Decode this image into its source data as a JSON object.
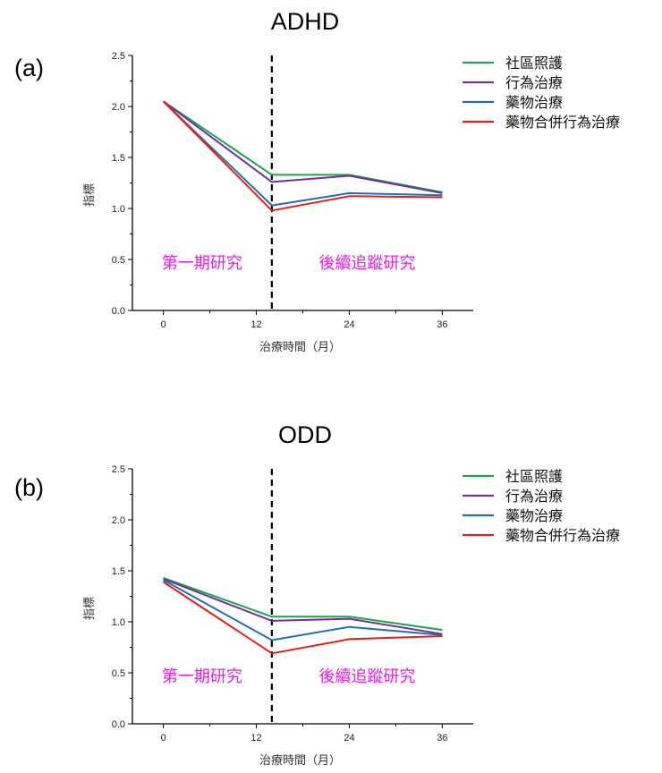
{
  "chart_data": [
    {
      "type": "line",
      "panel_label": "(a)",
      "title": "ADHD",
      "xlabel": "治療時間（月）",
      "ylabel": "指標",
      "x": [
        0,
        12,
        24,
        36
      ],
      "x_ticks": [
        "0",
        "12",
        "24",
        "36"
      ],
      "xlim": [
        -4,
        40
      ],
      "ylim": [
        0,
        2.5
      ],
      "y_ticks": [
        "0.0",
        "0.5",
        "1.0",
        "1.5",
        "2.0",
        "2.5"
      ],
      "divider_x": 14,
      "grid": false,
      "legend_position": "top-right",
      "phase_labels": [
        "第一期研究",
        "後續追蹤研究"
      ],
      "series": [
        {
          "name": "社區照護",
          "color": "#1aa64a",
          "x": [
            0,
            14,
            24,
            36
          ],
          "values": [
            2.05,
            1.33,
            1.33,
            1.16
          ]
        },
        {
          "name": "行為治療",
          "color": "#7030a0",
          "x": [
            0,
            14,
            24,
            36
          ],
          "values": [
            2.05,
            1.26,
            1.32,
            1.15
          ]
        },
        {
          "name": "藥物治療",
          "color": "#1f6fb0",
          "x": [
            0,
            14,
            24,
            36
          ],
          "values": [
            2.05,
            1.03,
            1.15,
            1.13
          ]
        },
        {
          "name": "藥物合併行為治療",
          "color": "#e0201a",
          "x": [
            0,
            14,
            24,
            36
          ],
          "values": [
            2.05,
            0.98,
            1.12,
            1.11
          ]
        }
      ]
    },
    {
      "type": "line",
      "panel_label": "(b)",
      "title": "ODD",
      "xlabel": "治療時間（月）",
      "ylabel": "指標",
      "x": [
        0,
        12,
        24,
        36
      ],
      "x_ticks": [
        "0",
        "12",
        "24",
        "36"
      ],
      "xlim": [
        -4,
        40
      ],
      "ylim": [
        0,
        2.5
      ],
      "y_ticks": [
        "0.0",
        "0.5",
        "1.0",
        "1.5",
        "2.0",
        "2.5"
      ],
      "divider_x": 14,
      "grid": false,
      "legend_position": "top-right",
      "phase_labels": [
        "第一期研究",
        "後續追蹤研究"
      ],
      "series": [
        {
          "name": "社區照護",
          "color": "#1aa64a",
          "x": [
            0,
            14,
            24,
            36
          ],
          "values": [
            1.43,
            1.05,
            1.05,
            0.92
          ]
        },
        {
          "name": "行為治療",
          "color": "#7030a0",
          "x": [
            0,
            14,
            24,
            36
          ],
          "values": [
            1.42,
            1.01,
            1.03,
            0.88
          ]
        },
        {
          "name": "藥物治療",
          "color": "#1f6fb0",
          "x": [
            0,
            14,
            24,
            36
          ],
          "values": [
            1.41,
            0.82,
            0.95,
            0.87
          ]
        },
        {
          "name": "藥物合併行為治療",
          "color": "#e0201a",
          "x": [
            0,
            14,
            24,
            36
          ],
          "values": [
            1.39,
            0.69,
            0.83,
            0.86
          ]
        }
      ]
    }
  ]
}
